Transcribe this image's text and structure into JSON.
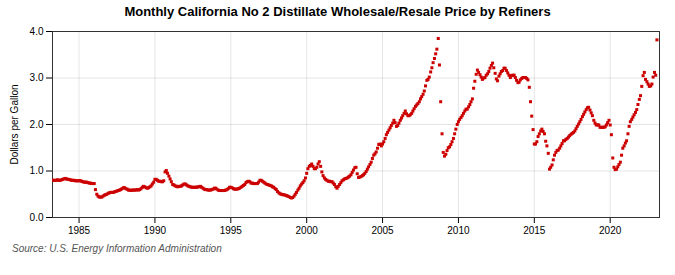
{
  "chart_data": {
    "type": "scatter",
    "title": "Monthly California No 2 Distillate Wholesale/Resale Price by Refiners",
    "ylabel": "Dollars per Gallon",
    "annotations": [
      "Source: U.S. Energy Information Administration"
    ],
    "color": "#cc0000",
    "marker": "square",
    "grid": true,
    "xlim": [
      1983.25,
      2023.25
    ],
    "xticks": [
      1985,
      1990,
      1995,
      2000,
      2005,
      2010,
      2015,
      2020
    ],
    "ylim": [
      0.0,
      4.0
    ],
    "yticks": [
      {
        "value": 0.0,
        "label": "0.0"
      },
      {
        "value": 1.0,
        "label": "1.0"
      },
      {
        "value": 2.0,
        "label": "2.0"
      },
      {
        "value": 3.0,
        "label": "3.0"
      },
      {
        "value": 4.0,
        "label": "4.0"
      }
    ],
    "x": [
      1983.25,
      1983.33,
      1983.42,
      1983.5,
      1983.58,
      1983.67,
      1983.75,
      1983.83,
      1983.92,
      1984.0,
      1984.08,
      1984.17,
      1984.25,
      1984.33,
      1984.42,
      1984.5,
      1984.58,
      1984.67,
      1984.75,
      1984.83,
      1984.92,
      1985.0,
      1985.08,
      1985.17,
      1985.25,
      1985.33,
      1985.42,
      1985.5,
      1985.58,
      1985.67,
      1985.75,
      1985.83,
      1985.92,
      1986.0,
      1986.08,
      1986.17,
      1986.25,
      1986.33,
      1986.42,
      1986.5,
      1986.58,
      1986.67,
      1986.75,
      1986.83,
      1986.92,
      1987.0,
      1987.08,
      1987.17,
      1987.25,
      1987.33,
      1987.42,
      1987.5,
      1987.58,
      1987.67,
      1987.75,
      1987.83,
      1987.92,
      1988.0,
      1988.08,
      1988.17,
      1988.25,
      1988.33,
      1988.42,
      1988.5,
      1988.58,
      1988.67,
      1988.75,
      1988.83,
      1988.92,
      1989.0,
      1989.08,
      1989.17,
      1989.25,
      1989.33,
      1989.42,
      1989.5,
      1989.58,
      1989.67,
      1989.75,
      1989.83,
      1989.92,
      1990.0,
      1990.08,
      1990.17,
      1990.25,
      1990.33,
      1990.42,
      1990.5,
      1990.58,
      1990.67,
      1990.75,
      1990.83,
      1990.92,
      1991.0,
      1991.08,
      1991.17,
      1991.25,
      1991.33,
      1991.42,
      1991.5,
      1991.58,
      1991.67,
      1991.75,
      1991.83,
      1991.92,
      1992.0,
      1992.08,
      1992.17,
      1992.25,
      1992.33,
      1992.42,
      1992.5,
      1992.58,
      1992.67,
      1992.75,
      1992.83,
      1992.92,
      1993.0,
      1993.08,
      1993.17,
      1993.25,
      1993.33,
      1993.42,
      1993.5,
      1993.58,
      1993.67,
      1993.75,
      1993.83,
      1993.92,
      1994.0,
      1994.08,
      1994.17,
      1994.25,
      1994.33,
      1994.42,
      1994.5,
      1994.58,
      1994.67,
      1994.75,
      1994.83,
      1994.92,
      1995.0,
      1995.08,
      1995.17,
      1995.25,
      1995.33,
      1995.42,
      1995.5,
      1995.58,
      1995.67,
      1995.75,
      1995.83,
      1995.92,
      1996.0,
      1996.08,
      1996.17,
      1996.25,
      1996.33,
      1996.42,
      1996.5,
      1996.58,
      1996.67,
      1996.75,
      1996.83,
      1996.92,
      1997.0,
      1997.08,
      1997.17,
      1997.25,
      1997.33,
      1997.42,
      1997.5,
      1997.58,
      1997.67,
      1997.75,
      1997.83,
      1997.92,
      1998.0,
      1998.08,
      1998.17,
      1998.25,
      1998.33,
      1998.42,
      1998.5,
      1998.58,
      1998.67,
      1998.75,
      1998.83,
      1998.92,
      1999.0,
      1999.08,
      1999.17,
      1999.25,
      1999.33,
      1999.42,
      1999.5,
      1999.58,
      1999.67,
      1999.75,
      1999.83,
      1999.92,
      2000.0,
      2000.08,
      2000.17,
      2000.25,
      2000.33,
      2000.42,
      2000.5,
      2000.58,
      2000.67,
      2000.75,
      2000.83,
      2000.92,
      2001.0,
      2001.08,
      2001.17,
      2001.25,
      2001.33,
      2001.42,
      2001.5,
      2001.58,
      2001.67,
      2001.75,
      2001.83,
      2001.92,
      2002.0,
      2002.08,
      2002.17,
      2002.25,
      2002.33,
      2002.42,
      2002.5,
      2002.58,
      2002.67,
      2002.75,
      2002.83,
      2002.92,
      2003.0,
      2003.08,
      2003.17,
      2003.25,
      2003.33,
      2003.42,
      2003.5,
      2003.58,
      2003.67,
      2003.75,
      2003.83,
      2003.92,
      2004.0,
      2004.08,
      2004.17,
      2004.25,
      2004.33,
      2004.42,
      2004.5,
      2004.58,
      2004.67,
      2004.75,
      2004.83,
      2004.92,
      2005.0,
      2005.08,
      2005.17,
      2005.25,
      2005.33,
      2005.42,
      2005.5,
      2005.58,
      2005.67,
      2005.75,
      2005.83,
      2005.92,
      2006.0,
      2006.08,
      2006.17,
      2006.25,
      2006.33,
      2006.42,
      2006.5,
      2006.58,
      2006.67,
      2006.75,
      2006.83,
      2006.92,
      2007.0,
      2007.08,
      2007.17,
      2007.25,
      2007.33,
      2007.42,
      2007.5,
      2007.58,
      2007.67,
      2007.75,
      2007.83,
      2007.92,
      2008.0,
      2008.08,
      2008.17,
      2008.25,
      2008.33,
      2008.42,
      2008.5,
      2008.58,
      2008.67,
      2008.75,
      2008.83,
      2008.92,
      2009.0,
      2009.08,
      2009.17,
      2009.25,
      2009.33,
      2009.42,
      2009.5,
      2009.58,
      2009.67,
      2009.75,
      2009.83,
      2009.92,
      2010.0,
      2010.08,
      2010.17,
      2010.25,
      2010.33,
      2010.42,
      2010.5,
      2010.58,
      2010.67,
      2010.75,
      2010.83,
      2010.92,
      2011.0,
      2011.08,
      2011.17,
      2011.25,
      2011.33,
      2011.42,
      2011.5,
      2011.58,
      2011.67,
      2011.75,
      2011.83,
      2011.92,
      2012.0,
      2012.08,
      2012.17,
      2012.25,
      2012.33,
      2012.42,
      2012.5,
      2012.58,
      2012.67,
      2012.75,
      2012.83,
      2012.92,
      2013.0,
      2013.08,
      2013.17,
      2013.25,
      2013.33,
      2013.42,
      2013.5,
      2013.58,
      2013.67,
      2013.75,
      2013.83,
      2013.92,
      2014.0,
      2014.08,
      2014.17,
      2014.25,
      2014.33,
      2014.42,
      2014.5,
      2014.58,
      2014.67,
      2014.75,
      2014.83,
      2014.92,
      2015.0,
      2015.08,
      2015.17,
      2015.25,
      2015.33,
      2015.42,
      2015.5,
      2015.58,
      2015.67,
      2015.75,
      2015.83,
      2015.92,
      2016.0,
      2016.08,
      2016.17,
      2016.25,
      2016.33,
      2016.42,
      2016.5,
      2016.58,
      2016.67,
      2016.75,
      2016.83,
      2016.92,
      2017.0,
      2017.08,
      2017.17,
      2017.25,
      2017.33,
      2017.42,
      2017.5,
      2017.58,
      2017.67,
      2017.75,
      2017.83,
      2017.92,
      2018.0,
      2018.08,
      2018.17,
      2018.25,
      2018.33,
      2018.42,
      2018.5,
      2018.58,
      2018.67,
      2018.75,
      2018.83,
      2018.92,
      2019.0,
      2019.08,
      2019.17,
      2019.25,
      2019.33,
      2019.42,
      2019.5,
      2019.58,
      2019.67,
      2019.75,
      2019.83,
      2019.92,
      2020.0,
      2020.08,
      2020.17,
      2020.25,
      2020.33,
      2020.42,
      2020.5,
      2020.58,
      2020.67,
      2020.75,
      2020.83,
      2020.92,
      2021.0,
      2021.08,
      2021.17,
      2021.25,
      2021.33,
      2021.42,
      2021.5,
      2021.58,
      2021.67,
      2021.75,
      2021.83,
      2021.92,
      2022.0,
      2022.08,
      2022.17,
      2022.25,
      2022.33,
      2022.42,
      2022.5,
      2022.58,
      2022.67,
      2022.75,
      2022.83,
      2022.92,
      2023.0,
      2023.08
    ],
    "values": [
      0.8,
      0.8,
      0.8,
      0.8,
      0.81,
      0.8,
      0.8,
      0.81,
      0.82,
      0.83,
      0.84,
      0.83,
      0.82,
      0.82,
      0.81,
      0.8,
      0.8,
      0.8,
      0.79,
      0.79,
      0.79,
      0.79,
      0.79,
      0.78,
      0.77,
      0.76,
      0.76,
      0.76,
      0.75,
      0.74,
      0.74,
      0.73,
      0.73,
      0.73,
      0.6,
      0.5,
      0.46,
      0.44,
      0.44,
      0.44,
      0.46,
      0.48,
      0.49,
      0.5,
      0.52,
      0.53,
      0.54,
      0.54,
      0.54,
      0.55,
      0.56,
      0.57,
      0.58,
      0.59,
      0.6,
      0.62,
      0.64,
      0.64,
      0.62,
      0.61,
      0.59,
      0.59,
      0.58,
      0.59,
      0.59,
      0.59,
      0.59,
      0.6,
      0.59,
      0.6,
      0.62,
      0.65,
      0.67,
      0.66,
      0.64,
      0.63,
      0.64,
      0.66,
      0.68,
      0.72,
      0.76,
      0.82,
      0.82,
      0.8,
      0.78,
      0.78,
      0.77,
      0.77,
      0.79,
      0.98,
      1.01,
      0.95,
      0.89,
      0.83,
      0.77,
      0.71,
      0.7,
      0.68,
      0.67,
      0.66,
      0.67,
      0.67,
      0.68,
      0.7,
      0.72,
      0.72,
      0.7,
      0.68,
      0.67,
      0.66,
      0.65,
      0.65,
      0.65,
      0.65,
      0.65,
      0.66,
      0.66,
      0.67,
      0.65,
      0.63,
      0.61,
      0.6,
      0.6,
      0.59,
      0.59,
      0.59,
      0.6,
      0.61,
      0.63,
      0.63,
      0.61,
      0.59,
      0.58,
      0.58,
      0.58,
      0.58,
      0.58,
      0.59,
      0.6,
      0.62,
      0.65,
      0.65,
      0.64,
      0.62,
      0.61,
      0.61,
      0.61,
      0.62,
      0.63,
      0.65,
      0.67,
      0.69,
      0.71,
      0.75,
      0.77,
      0.78,
      0.77,
      0.74,
      0.74,
      0.73,
      0.73,
      0.73,
      0.73,
      0.76,
      0.8,
      0.8,
      0.78,
      0.76,
      0.74,
      0.72,
      0.71,
      0.7,
      0.69,
      0.68,
      0.66,
      0.65,
      0.62,
      0.6,
      0.56,
      0.53,
      0.51,
      0.5,
      0.49,
      0.49,
      0.48,
      0.47,
      0.46,
      0.45,
      0.43,
      0.42,
      0.43,
      0.46,
      0.5,
      0.54,
      0.59,
      0.63,
      0.68,
      0.72,
      0.75,
      0.79,
      0.85,
      0.95,
      1.05,
      1.1,
      1.12,
      1.15,
      1.1,
      1.05,
      1.05,
      1.08,
      1.15,
      1.2,
      1.1,
      0.98,
      0.9,
      0.85,
      0.82,
      0.8,
      0.78,
      0.78,
      0.77,
      0.77,
      0.74,
      0.71,
      0.66,
      0.63,
      0.67,
      0.71,
      0.75,
      0.79,
      0.81,
      0.83,
      0.84,
      0.85,
      0.87,
      0.89,
      0.92,
      0.97,
      1.02,
      1.07,
      1.08,
      0.94,
      0.86,
      0.87,
      0.88,
      0.9,
      0.92,
      0.95,
      0.99,
      1.04,
      1.09,
      1.14,
      1.19,
      1.27,
      1.34,
      1.37,
      1.41,
      1.49,
      1.57,
      1.58,
      1.54,
      1.58,
      1.63,
      1.7,
      1.78,
      1.83,
      1.88,
      1.93,
      1.98,
      2.03,
      2.09,
      2.04,
      1.96,
      1.98,
      2.03,
      2.09,
      2.14,
      2.19,
      2.24,
      2.29,
      2.23,
      2.19,
      2.19,
      2.21,
      2.24,
      2.29,
      2.34,
      2.39,
      2.42,
      2.45,
      2.49,
      2.55,
      2.6,
      2.65,
      2.72,
      2.83,
      2.95,
      2.97,
      3.02,
      3.13,
      3.22,
      3.33,
      3.42,
      3.52,
      3.62,
      3.85,
      3.28,
      2.49,
      1.8,
      1.4,
      1.32,
      1.36,
      1.44,
      1.5,
      1.52,
      1.57,
      1.63,
      1.7,
      1.8,
      1.9,
      2.0,
      2.06,
      2.11,
      2.15,
      2.19,
      2.24,
      2.29,
      2.33,
      2.33,
      2.38,
      2.43,
      2.49,
      2.55,
      2.78,
      2.93,
      3.08,
      3.17,
      3.12,
      3.07,
      3.02,
      2.97,
      3.0,
      3.01,
      3.06,
      3.09,
      3.14,
      3.21,
      3.27,
      3.32,
      3.22,
      3.1,
      2.98,
      2.94,
      3.04,
      3.09,
      3.14,
      3.16,
      3.21,
      3.21,
      3.16,
      3.11,
      3.06,
      3.01,
      3.05,
      3.06,
      3.06,
      3.01,
      2.95,
      2.9,
      2.91,
      2.96,
      2.99,
      3.01,
      3.01,
      3.01,
      2.99,
      2.96,
      2.8,
      2.49,
      2.18,
      1.89,
      1.58,
      1.58,
      1.63,
      1.74,
      1.8,
      1.86,
      1.9,
      1.85,
      1.8,
      1.64,
      1.54,
      1.38,
      1.04,
      1.08,
      1.13,
      1.24,
      1.34,
      1.4,
      1.44,
      1.45,
      1.49,
      1.54,
      1.59,
      1.65,
      1.65,
      1.68,
      1.7,
      1.73,
      1.76,
      1.79,
      1.81,
      1.83,
      1.86,
      1.91,
      1.96,
      2.01,
      2.06,
      2.11,
      2.17,
      2.22,
      2.27,
      2.32,
      2.36,
      2.37,
      2.31,
      2.25,
      2.19,
      2.09,
      2.03,
      1.99,
      1.99,
      1.99,
      1.94,
      1.94,
      1.94,
      1.94,
      1.95,
      1.99,
      2.04,
      2.09,
      1.99,
      1.78,
      1.28,
      1.08,
      1.03,
      1.04,
      1.09,
      1.14,
      1.19,
      1.34,
      1.49,
      1.54,
      1.6,
      1.65,
      1.8,
      1.96,
      2.06,
      2.11,
      2.16,
      2.21,
      2.26,
      2.32,
      2.43,
      2.54,
      2.62,
      2.82,
      3.05,
      3.12,
      2.97,
      2.92,
      2.87,
      2.82,
      2.83,
      2.87,
      3.02,
      3.12,
      3.06,
      3.82
    ]
  }
}
